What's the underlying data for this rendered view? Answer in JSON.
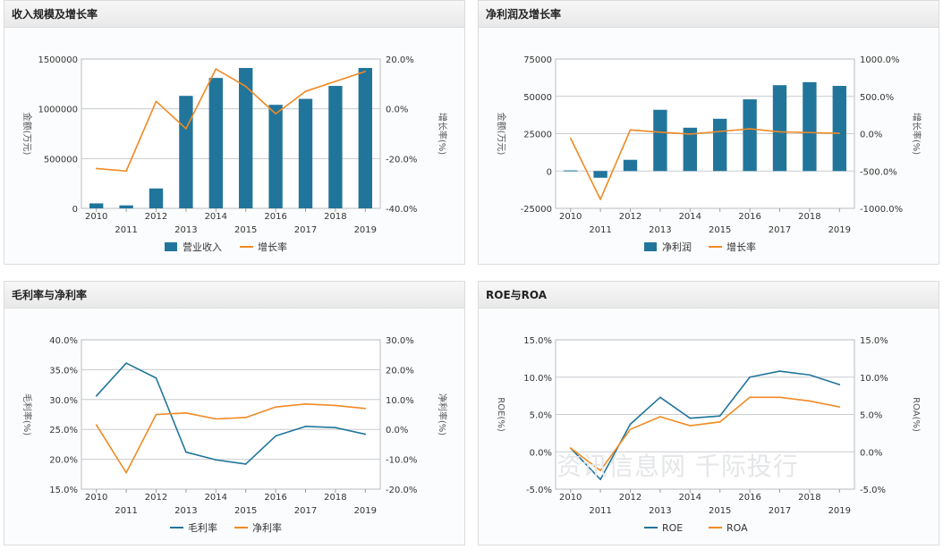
{
  "panels": [
    {
      "title": "收入规模及增长率",
      "chart_data": {
        "type": "bar",
        "categories": [
          "2010",
          "2011",
          "2012",
          "2013",
          "2014",
          "2015",
          "2016",
          "2017",
          "2018",
          "2019"
        ],
        "series": [
          {
            "name": "营业收入",
            "kind": "bar",
            "axis": "left",
            "color": "#21759b",
            "values": [
              50000,
              30000,
              200000,
              1130000,
              1310000,
              1410000,
              1040000,
              1100000,
              1230000,
              1410000
            ]
          },
          {
            "name": "增长率",
            "kind": "line",
            "axis": "right",
            "color": "#f08a24",
            "values": [
              -24,
              -25,
              3,
              -8,
              16,
              9,
              -2,
              7,
              11,
              15
            ]
          }
        ],
        "y_left": {
          "label": "金额(万元)",
          "min": 0,
          "max": 1500000,
          "ticks": [
            "0",
            "500000",
            "1000000",
            "1500000"
          ],
          "tick_values": [
            0,
            500000,
            1000000,
            1500000
          ]
        },
        "y_right": {
          "label": "增长率(%)",
          "min": -40,
          "max": 20,
          "ticks": [
            "-40.0%",
            "-20.0%",
            "0.0%",
            "20.0%"
          ],
          "tick_values": [
            -40,
            -20,
            0,
            20
          ]
        }
      }
    },
    {
      "title": "净利润及增长率",
      "chart_data": {
        "type": "bar",
        "categories": [
          "2010",
          "2011",
          "2012",
          "2013",
          "2014",
          "2015",
          "2016",
          "2017",
          "2018",
          "2019"
        ],
        "series": [
          {
            "name": "净利润",
            "kind": "bar",
            "axis": "left",
            "color": "#21759b",
            "values": [
              400,
              -4500,
              7500,
              41000,
              29000,
              35000,
              48000,
              57500,
              59500,
              57000
            ]
          },
          {
            "name": "增长率",
            "kind": "line",
            "axis": "right",
            "color": "#f08a24",
            "values": [
              -60,
              -880,
              50,
              20,
              -5,
              30,
              65,
              25,
              15,
              5
            ]
          }
        ],
        "y_left": {
          "label": "金额(万元)",
          "min": -25000,
          "max": 75000,
          "ticks": [
            "-25000",
            "0",
            "25000",
            "50000",
            "75000"
          ],
          "tick_values": [
            -25000,
            0,
            25000,
            50000,
            75000
          ]
        },
        "y_right": {
          "label": "增长率(%)",
          "min": -1000,
          "max": 1000,
          "ticks": [
            "-1000.0%",
            "-500.0%",
            "0.0%",
            "500.0%",
            "1000.0%"
          ],
          "tick_values": [
            -1000,
            -500,
            0,
            500,
            1000
          ]
        }
      }
    },
    {
      "title": "毛利率与净利率",
      "chart_data": {
        "type": "line",
        "categories": [
          "2010",
          "2011",
          "2012",
          "2013",
          "2014",
          "2015",
          "2016",
          "2017",
          "2018",
          "2019"
        ],
        "series": [
          {
            "name": "毛利率",
            "kind": "line",
            "axis": "left",
            "color": "#21759b",
            "values": [
              30.6,
              36.1,
              33.6,
              21.2,
              19.9,
              19.2,
              23.9,
              25.5,
              25.3,
              24.2
            ]
          },
          {
            "name": "净利率",
            "kind": "line",
            "axis": "right",
            "color": "#f08a24",
            "values": [
              1.5,
              -14.5,
              5.0,
              5.5,
              3.5,
              4.0,
              7.5,
              8.5,
              8.0,
              7.0
            ]
          }
        ],
        "y_left": {
          "label": "毛利率(%)",
          "min": 15,
          "max": 40,
          "ticks": [
            "15.0%",
            "20.0%",
            "25.0%",
            "30.0%",
            "35.0%",
            "40.0%"
          ],
          "tick_values": [
            15,
            20,
            25,
            30,
            35,
            40
          ]
        },
        "y_right": {
          "label": "净利率(%)",
          "min": -20,
          "max": 30,
          "ticks": [
            "-20.0%",
            "-10.0%",
            "0.0%",
            "10.0%",
            "20.0%",
            "30.0%"
          ],
          "tick_values": [
            -20,
            -10,
            0,
            10,
            20,
            30
          ]
        }
      }
    },
    {
      "title": "ROE与ROA",
      "chart_data": {
        "type": "line",
        "categories": [
          "2010",
          "2011",
          "2012",
          "2013",
          "2014",
          "2015",
          "2016",
          "2017",
          "2018",
          "2019"
        ],
        "series": [
          {
            "name": "ROE",
            "kind": "line",
            "axis": "left",
            "color": "#21759b",
            "values": [
              0.5,
              -3.7,
              3.7,
              7.3,
              4.5,
              4.8,
              10.0,
              10.8,
              10.3,
              9.0
            ]
          },
          {
            "name": "ROA",
            "kind": "line",
            "axis": "right",
            "color": "#f08a24",
            "values": [
              0.5,
              -2.5,
              3.0,
              4.7,
              3.5,
              4.0,
              7.3,
              7.3,
              6.8,
              6.0
            ]
          }
        ],
        "y_left": {
          "label": "ROE(%)",
          "min": -5,
          "max": 15,
          "ticks": [
            "-5.0%",
            "0.0%",
            "5.0%",
            "10.0%",
            "15.0%"
          ],
          "tick_values": [
            -5,
            0,
            5,
            10,
            15
          ]
        },
        "y_right": {
          "label": "ROA(%)",
          "min": -5,
          "max": 15,
          "ticks": [
            "-5.0%",
            "0.0%",
            "5.0%",
            "10.0%",
            "15.0%"
          ],
          "tick_values": [
            -5,
            0,
            5,
            10,
            15
          ]
        }
      }
    }
  ],
  "watermark": "资讯信息网 千际投行"
}
